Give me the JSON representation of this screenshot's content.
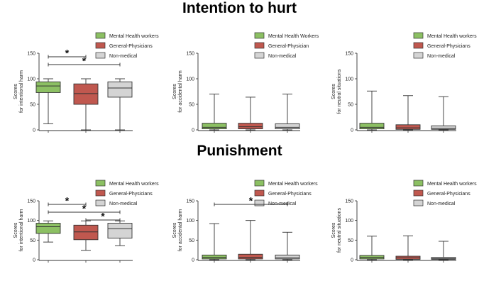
{
  "chart_data": [
    {
      "type": "boxplot",
      "title": "Intention to hurt",
      "panel": "intention-intentional",
      "ylabel": [
        "Scores",
        "for intentional harm"
      ],
      "ylim": [
        0,
        150
      ],
      "yticks": [
        0,
        50,
        100,
        150
      ],
      "legend": [
        "Mental Health workers",
        "General-Physicians",
        "Non-medical"
      ],
      "boxes": [
        {
          "group": "Mental Health workers",
          "min": 12,
          "q1": 73,
          "median": 86,
          "q3": 94,
          "max": 100
        },
        {
          "group": "General-Physicians",
          "min": 0,
          "q1": 50,
          "median": 71,
          "q3": 90,
          "max": 100
        },
        {
          "group": "Non-medical",
          "min": 0,
          "q1": 64,
          "median": 82,
          "q3": 94,
          "max": 100
        }
      ],
      "significance": [
        {
          "from": 0,
          "to": 1,
          "label": "*"
        },
        {
          "from": 0,
          "to": 2,
          "label": "*"
        }
      ]
    },
    {
      "type": "boxplot",
      "panel": "intention-accidental",
      "ylabel": [
        "Scores",
        "for accidental harm"
      ],
      "ylim": [
        0,
        150
      ],
      "yticks": [
        0,
        50,
        100,
        150
      ],
      "legend": [
        "Mental Health Workers",
        "General-Physician",
        "Non-medical"
      ],
      "boxes": [
        {
          "group": "Mental Health Workers",
          "min": 0,
          "q1": 2,
          "median": 5,
          "q3": 13,
          "max": 70
        },
        {
          "group": "General-Physician",
          "min": 0,
          "q1": 2,
          "median": 6,
          "q3": 13,
          "max": 64
        },
        {
          "group": "Non-medical",
          "min": 0,
          "q1": 2,
          "median": 5,
          "q3": 12,
          "max": 70
        }
      ],
      "significance": []
    },
    {
      "type": "boxplot",
      "panel": "intention-neutral",
      "ylabel": [
        "Scores",
        "for neutral situations"
      ],
      "ylim": [
        0,
        150
      ],
      "yticks": [
        0,
        50,
        100,
        150
      ],
      "legend": [
        "Mental Health workers",
        "General-Physicians",
        "Non-medical"
      ],
      "boxes": [
        {
          "group": "Mental Health workers",
          "min": 0,
          "q1": 2,
          "median": 5,
          "q3": 13,
          "max": 76
        },
        {
          "group": "General-Physicians",
          "min": 0,
          "q1": 1,
          "median": 4,
          "q3": 10,
          "max": 67
        },
        {
          "group": "Non-medical",
          "min": 0,
          "q1": 1,
          "median": 3,
          "q3": 8,
          "max": 65
        }
      ],
      "significance": []
    },
    {
      "type": "boxplot",
      "title": "Punishment",
      "panel": "punishment-intentional",
      "ylabel": [
        "Scores",
        "for intentional harm"
      ],
      "ylim": [
        0,
        150
      ],
      "yticks": [
        0,
        50,
        100,
        150
      ],
      "legend": [
        "Mental Health workers",
        "General-Physicians",
        "Non-medical"
      ],
      "boxes": [
        {
          "group": "Mental Health workers",
          "min": 45,
          "q1": 67,
          "median": 84,
          "q3": 93,
          "max": 99
        },
        {
          "group": "General-Physicians",
          "min": 24,
          "q1": 51,
          "median": 71,
          "q3": 88,
          "max": 99
        },
        {
          "group": "Non-medical",
          "min": 36,
          "q1": 55,
          "median": 79,
          "q3": 93,
          "max": 99
        }
      ],
      "significance": [
        {
          "from": 0,
          "to": 1,
          "label": "*"
        },
        {
          "from": 0,
          "to": 2,
          "label": "*"
        },
        {
          "from": 1,
          "to": 2,
          "label": "*"
        }
      ]
    },
    {
      "type": "boxplot",
      "panel": "punishment-accidental",
      "ylabel": [
        "Scores",
        "for accidental harm"
      ],
      "ylim": [
        0,
        150
      ],
      "yticks": [
        0,
        50,
        100,
        150
      ],
      "legend": [
        "Mental Health workers",
        "General-Physicians",
        "Non-medical"
      ],
      "boxes": [
        {
          "group": "Mental Health workers",
          "min": 0,
          "q1": 2,
          "median": 6,
          "q3": 12,
          "max": 92
        },
        {
          "group": "General-Physicians",
          "min": 0,
          "q1": 2,
          "median": 6,
          "q3": 14,
          "max": 100
        },
        {
          "group": "Non-medical",
          "min": 0,
          "q1": 2,
          "median": 5,
          "q3": 12,
          "max": 70
        }
      ],
      "significance": [
        {
          "from": 0,
          "to": 2,
          "label": "*"
        }
      ]
    },
    {
      "type": "boxplot",
      "panel": "punishment-neutral",
      "ylabel": [
        "Scores",
        "for neutral situations"
      ],
      "ylim": [
        0,
        150
      ],
      "yticks": [
        0,
        50,
        100,
        150
      ],
      "legend": [
        "Mental Health workers",
        "General-Physicians",
        "Non-medical"
      ],
      "boxes": [
        {
          "group": "Mental Health workers",
          "min": 0,
          "q1": 2,
          "median": 6,
          "q3": 11,
          "max": 60
        },
        {
          "group": "General-Physicians",
          "min": 0,
          "q1": 1,
          "median": 5,
          "q3": 9,
          "max": 61
        },
        {
          "group": "Non-medical",
          "min": 0,
          "q1": 1,
          "median": 3,
          "q3": 6,
          "max": 47
        }
      ],
      "significance": []
    }
  ],
  "colors": {
    "mental_health": "#8cc063",
    "general_physicians": "#c0584f",
    "non_medical": "#d4d4d4",
    "line": "#333333"
  }
}
